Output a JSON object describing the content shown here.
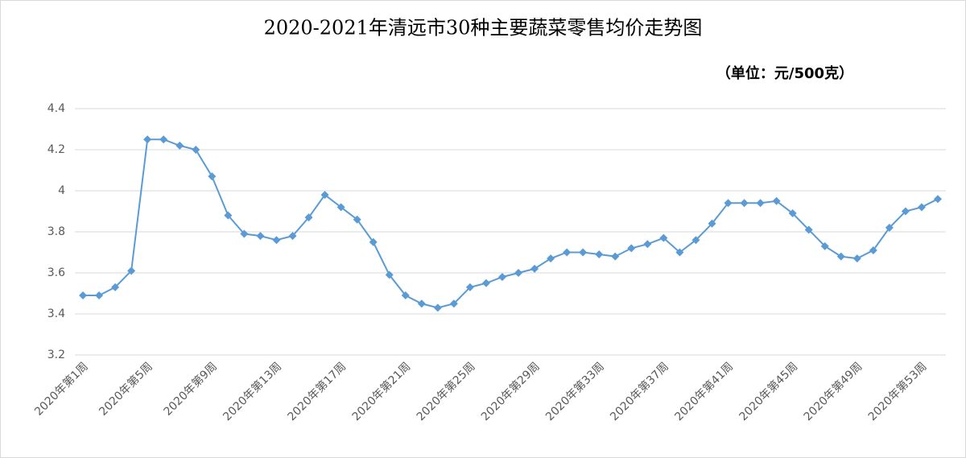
{
  "chart_data": {
    "type": "line",
    "title": "2020-2021年清远市30种主要蔬菜零售均价走势图",
    "subtitle": "（单位：元/500克）",
    "categories": [
      "2020年第1周",
      null,
      null,
      null,
      "2020年第5周",
      null,
      null,
      null,
      "2020年第9周",
      null,
      null,
      null,
      "2020年第13周",
      null,
      null,
      null,
      "2020年第17周",
      null,
      null,
      null,
      "2020年第21周",
      null,
      null,
      null,
      "2020年第25周",
      null,
      null,
      null,
      "2020年第29周",
      null,
      null,
      null,
      "2020年第33周",
      null,
      null,
      null,
      "2020年第37周",
      null,
      null,
      null,
      "2020年第41周",
      null,
      null,
      null,
      "2020年第45周",
      null,
      null,
      null,
      "2020年第49周",
      null,
      null,
      null,
      "2020年第53周",
      null
    ],
    "values": [
      3.49,
      3.49,
      3.53,
      3.61,
      4.25,
      4.25,
      4.22,
      4.2,
      4.07,
      3.88,
      3.79,
      3.78,
      3.76,
      3.78,
      3.87,
      3.98,
      3.92,
      3.86,
      3.75,
      3.59,
      3.49,
      3.45,
      3.43,
      3.45,
      3.53,
      3.55,
      3.58,
      3.6,
      3.62,
      3.67,
      3.7,
      3.7,
      3.69,
      3.68,
      3.72,
      3.74,
      3.77,
      3.7,
      3.76,
      3.84,
      3.94,
      3.94,
      3.94,
      3.95,
      3.89,
      3.81,
      3.73,
      3.68,
      3.67,
      3.71,
      3.82,
      3.9,
      3.92,
      3.96
    ],
    "color": "#5b9bd5",
    "ylim": [
      3.2,
      4.4
    ],
    "yticks": [
      3.2,
      3.4,
      3.6,
      3.8,
      4,
      4.2,
      4.4
    ],
    "grid": true
  }
}
